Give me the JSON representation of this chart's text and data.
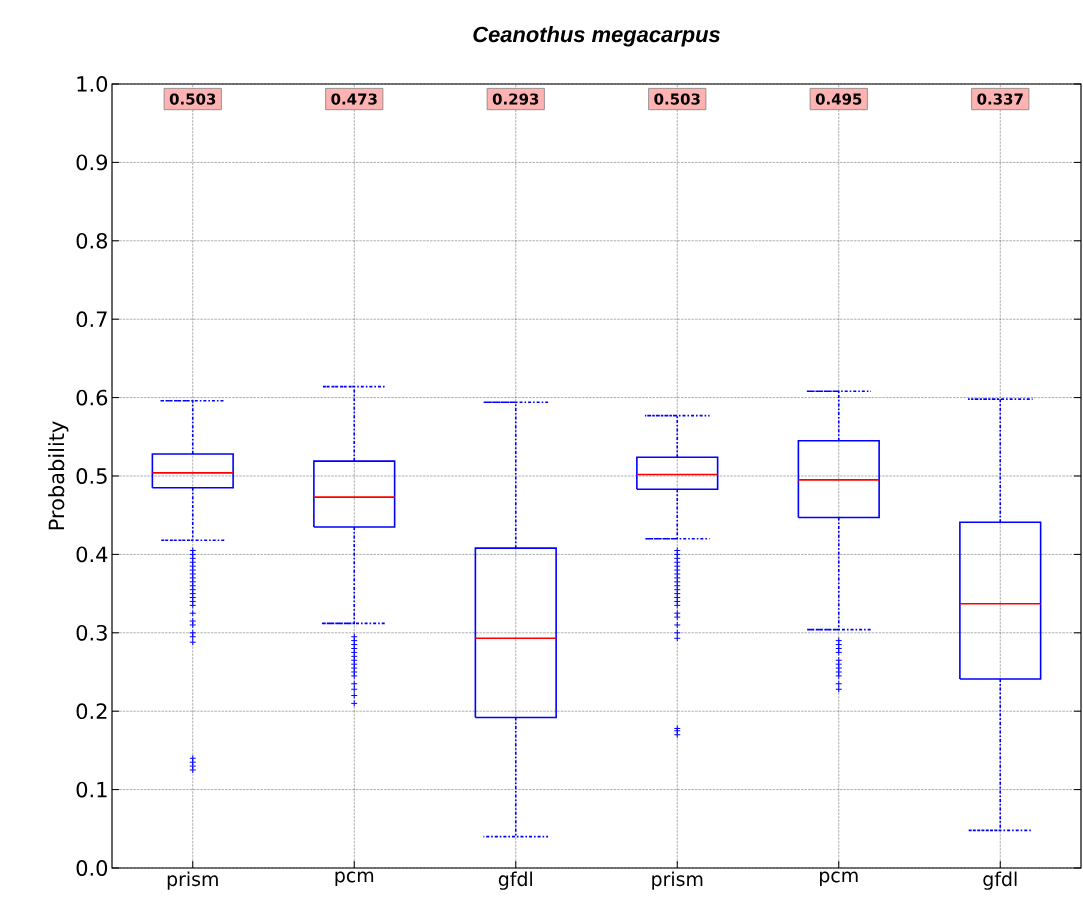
{
  "chart_data": {
    "type": "box",
    "title": "Ceanothus megacarpus",
    "ylabel": "Probability",
    "categories": [
      "prism",
      "pcm",
      "gfdl",
      "prism",
      "pcm",
      "gfdl"
    ],
    "color": "#0000ff",
    "boxes": [
      {
        "low": 0.418,
        "q1": 0.485,
        "median": 0.504,
        "q3": 0.528,
        "high": 0.596,
        "outliers": [
          0.405,
          0.4,
          0.395,
          0.39,
          0.385,
          0.38,
          0.375,
          0.37,
          0.365,
          0.36,
          0.355,
          0.35,
          0.345,
          0.34,
          0.335,
          0.325,
          0.315,
          0.31,
          0.3,
          0.295,
          0.288,
          0.14,
          0.135,
          0.13,
          0.125
        ]
      },
      {
        "low": 0.312,
        "q1": 0.435,
        "median": 0.473,
        "q3": 0.519,
        "high": 0.614,
        "outliers": [
          0.295,
          0.29,
          0.285,
          0.28,
          0.275,
          0.27,
          0.265,
          0.26,
          0.255,
          0.25,
          0.245,
          0.235,
          0.228,
          0.22,
          0.21
        ]
      },
      {
        "low": 0.04,
        "q1": 0.192,
        "median": 0.293,
        "q3": 0.408,
        "high": 0.594
      },
      {
        "low": 0.42,
        "q1": 0.483,
        "median": 0.502,
        "q3": 0.524,
        "high": 0.577,
        "outliers": [
          0.405,
          0.4,
          0.395,
          0.39,
          0.385,
          0.38,
          0.375,
          0.37,
          0.365,
          0.36,
          0.355,
          0.35,
          0.345,
          0.34,
          0.335,
          0.325,
          0.32,
          0.31,
          0.3,
          0.293,
          0.178,
          0.175,
          0.17
        ]
      },
      {
        "low": 0.304,
        "q1": 0.447,
        "median": 0.495,
        "q3": 0.545,
        "high": 0.608,
        "outliers": [
          0.29,
          0.285,
          0.28,
          0.275,
          0.265,
          0.26,
          0.255,
          0.25,
          0.245,
          0.235,
          0.228
        ]
      },
      {
        "low": 0.048,
        "q1": 0.241,
        "median": 0.337,
        "q3": 0.441,
        "high": 0.598
      }
    ],
    "annotations": [
      "0.503",
      "0.473",
      "0.293",
      "0.503",
      "0.495",
      "0.337"
    ],
    "ylim": [
      0.0,
      1.0
    ],
    "yticks": [
      {
        "value": 0.0,
        "label": "0.0"
      },
      {
        "value": 0.1,
        "label": "0.1"
      },
      {
        "value": 0.2,
        "label": "0.2"
      },
      {
        "value": 0.3,
        "label": "0.3"
      },
      {
        "value": 0.4,
        "label": "0.4"
      },
      {
        "value": 0.5,
        "label": "0.5"
      },
      {
        "value": 0.6,
        "label": "0.6"
      },
      {
        "value": 0.7,
        "label": "0.7"
      },
      {
        "value": 0.8,
        "label": "0.8"
      },
      {
        "value": 0.9,
        "label": "0.9"
      },
      {
        "value": 1.0,
        "label": "1.0"
      }
    ],
    "grid": true,
    "marker": "cross",
    "line_style": "dashed"
  }
}
